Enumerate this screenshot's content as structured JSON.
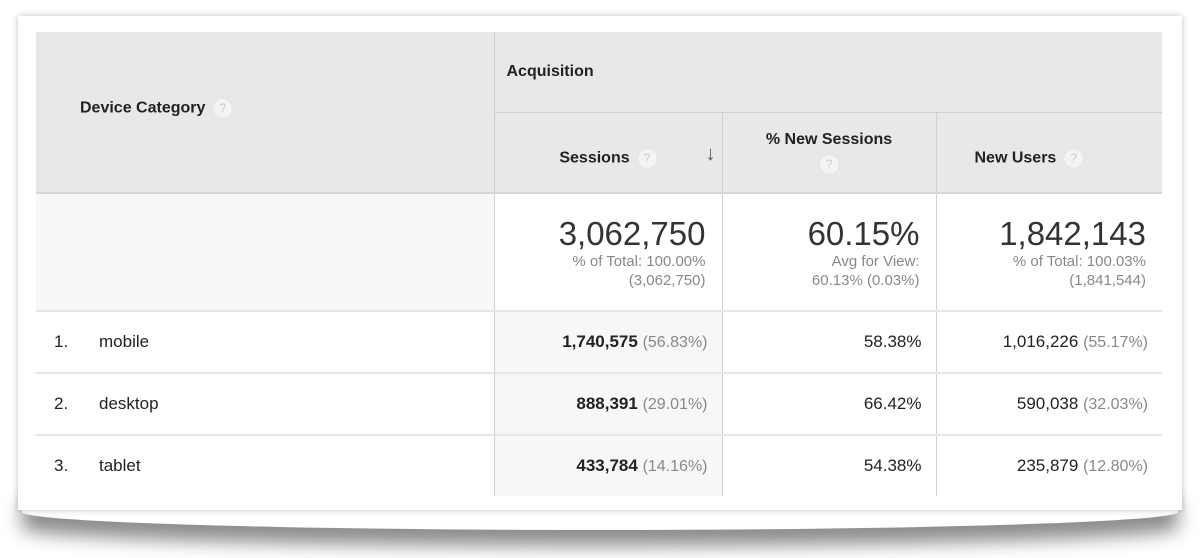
{
  "header": {
    "dimension": "Device Category",
    "group": "Acquisition",
    "columns": [
      {
        "label": "Sessions",
        "sorted": "descending"
      },
      {
        "label": "% New Sessions"
      },
      {
        "label": "New Users"
      }
    ],
    "help_glyph": "?"
  },
  "totals": [
    {
      "value": "3,062,750",
      "line1": "% of Total: 100.00%",
      "line2": "(3,062,750)"
    },
    {
      "value": "60.15%",
      "line1": "Avg for View:",
      "line2": "60.13% (0.03%)"
    },
    {
      "value": "1,842,143",
      "line1": "% of Total: 100.03%",
      "line2": "(1,841,544)"
    }
  ],
  "rows": [
    {
      "index": "1.",
      "name": "mobile",
      "sessions": "1,740,575",
      "sessions_pct": "(56.83%)",
      "new_sessions": "58.38%",
      "new_users": "1,016,226",
      "new_users_pct": "(55.17%)"
    },
    {
      "index": "2.",
      "name": "desktop",
      "sessions": "888,391",
      "sessions_pct": "(29.01%)",
      "new_sessions": "66.42%",
      "new_users": "590,038",
      "new_users_pct": "(32.03%)"
    },
    {
      "index": "3.",
      "name": "tablet",
      "sessions": "433,784",
      "sessions_pct": "(14.16%)",
      "new_sessions": "54.38%",
      "new_users": "235,879",
      "new_users_pct": "(12.80%)"
    }
  ]
}
